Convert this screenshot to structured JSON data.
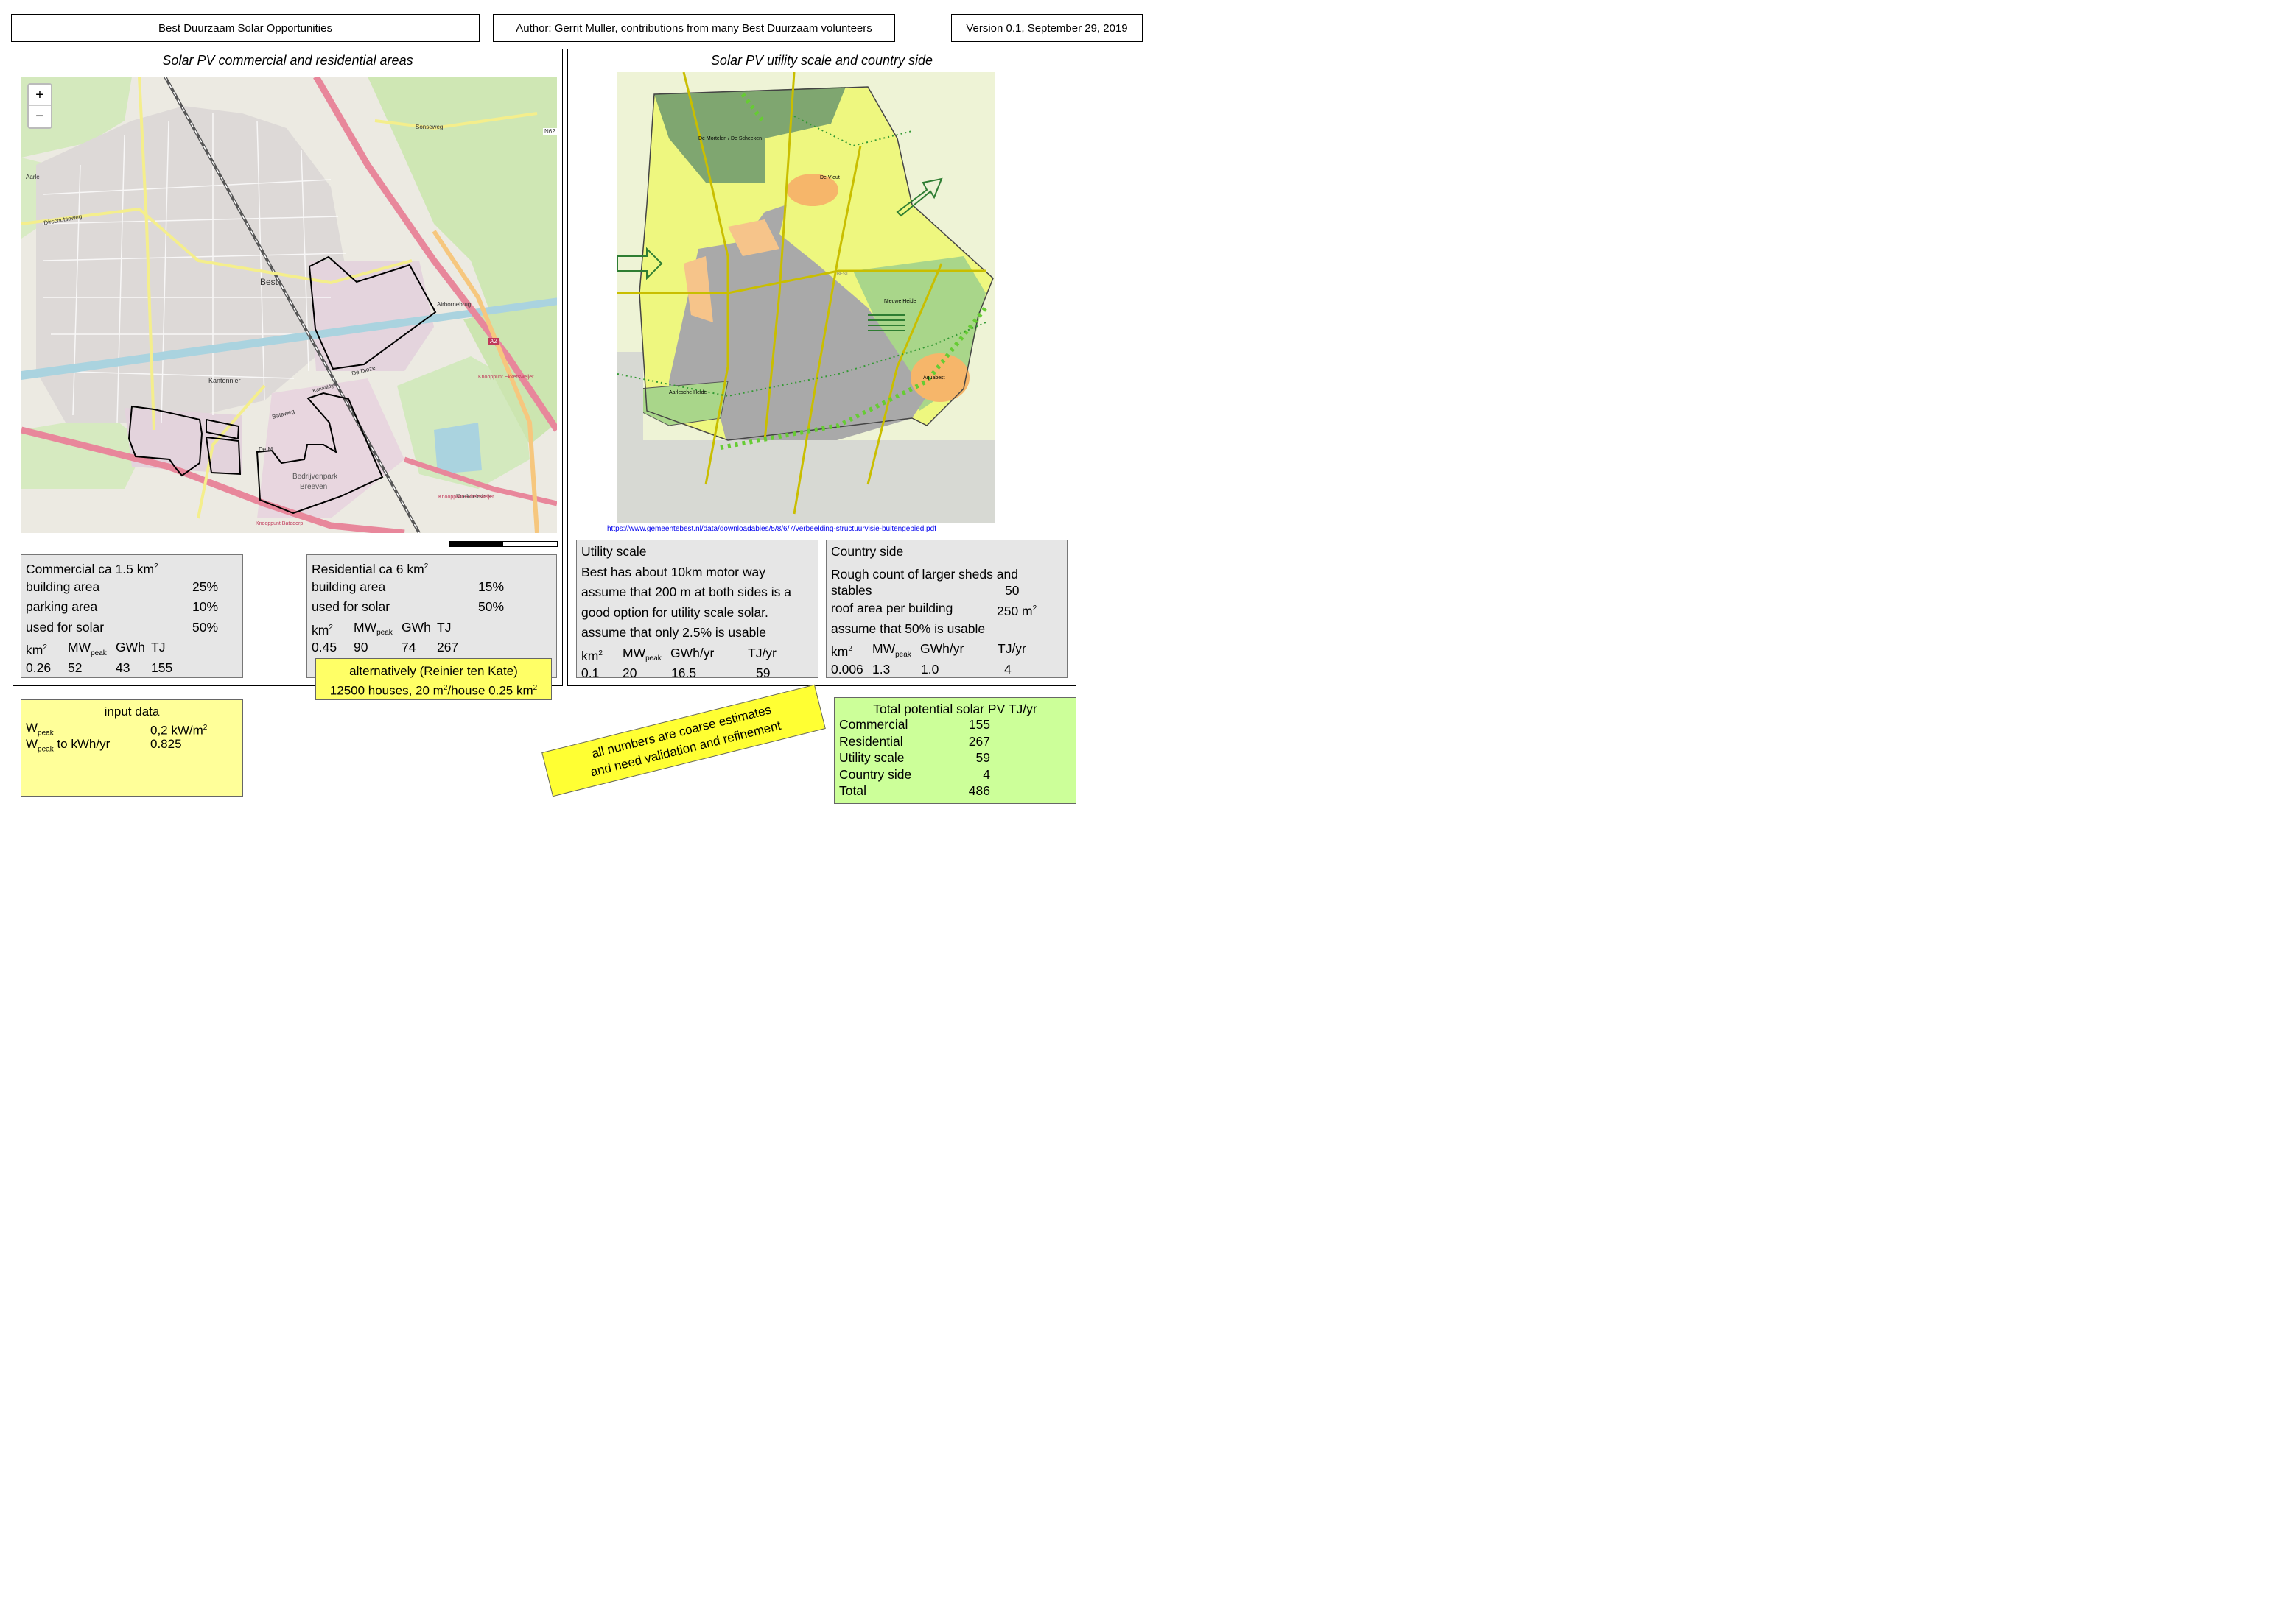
{
  "header": {
    "title": "Best Duurzaam Solar Opportunities",
    "author": "Author: Gerrit Muller, contributions from many Best Duurzaam volunteers",
    "version": "Version 0.1, September 29, 2019"
  },
  "left_panel": {
    "title": "Solar PV commercial and residential areas",
    "map": {
      "zoom_in": "+",
      "zoom_out": "−",
      "labels": {
        "best": "Best",
        "kantonnier": "Kantonnier",
        "aarle": "Aarle",
        "dirschotseweg": "Dirschotseweg",
        "airborne": "Airbornebrug",
        "de_dieze": "De Dieze",
        "kanaaldijk": "Kanaaldijk",
        "bataweg": "Bataweg",
        "bedrijvenpark": "Bedrijvenpark",
        "breeven": "Breeven",
        "koekoeksbos": "Koekoeksbos",
        "ekkersweijer1": "Knooppunt Ekkersweijer",
        "ekkersweijer2": "Knooppunt Ekkersweijer",
        "batadorp": "Knooppunt Batadorp",
        "sonseweg": "Sonseweg",
        "a2": "A2",
        "n62": "N62",
        "de_m": "De M"
      }
    },
    "commercial": {
      "title": "Commercial ca 1.5 km",
      "title_sup": "2",
      "rows": [
        {
          "label": "building area",
          "value": "25%"
        },
        {
          "label": "parking area",
          "value": "10%"
        },
        {
          "label": "used for solar",
          "value": "50%"
        }
      ],
      "header": {
        "km": "km",
        "km_sup": "2",
        "mw": "MW",
        "mw_sub": "peak",
        "gwh": "GWh",
        "tj": "TJ"
      },
      "values": {
        "km": "0.26",
        "mw": "52",
        "gwh": "43",
        "tj": "155"
      }
    },
    "residential": {
      "title": "Residential ca 6 km",
      "title_sup": "2",
      "rows": [
        {
          "label": "building area",
          "value": "15%"
        },
        {
          "label": "used for solar",
          "value": "50%"
        }
      ],
      "header": {
        "km": "km",
        "km_sup": "2",
        "mw": "MW",
        "mw_sub": "peak",
        "gwh": "GWh",
        "tj": "TJ"
      },
      "values": {
        "km": "0.45",
        "mw": "90",
        "gwh": "74",
        "tj": "267"
      }
    },
    "alternatively": {
      "line1": "alternatively (Reinier ten Kate)",
      "line2a": "12500 houses, 20 m",
      "sup1": "2",
      "line2b": "/house 0.25 km",
      "sup2": "2"
    }
  },
  "right_panel": {
    "title": "Solar PV utility scale and country side",
    "map": {
      "labels": {
        "mortelen": "De Mortelen / De Scheeken",
        "vleut": "De Vleut",
        "nieuwe_heide": "Nieuwe Heide",
        "aarlesche_heide": "Aarlesche Heide",
        "aquabest": "Aquabest",
        "best": "BEST"
      }
    },
    "link": "https://www.gemeentebest.nl/data/downloadables/5/8/6/7/verbeelding-structuurvisie-buitengebied.pdf",
    "utility": {
      "title": "Utility scale",
      "lines": [
        "Best has about 10km motor way",
        "assume that 200 m at both sides is a",
        "good option for utility scale solar.",
        "assume that only 2.5% is usable"
      ],
      "header": {
        "km": "km",
        "km_sup": "2",
        "mw": "MW",
        "mw_sub": "peak",
        "gwh": "GWh/yr",
        "tj": "TJ/yr"
      },
      "values": {
        "km": "0.1",
        "mw": "20",
        "gwh": "16.5",
        "tj": "59"
      }
    },
    "country": {
      "title": "Country side",
      "line1": "Rough count of larger sheds and",
      "line2": "stables",
      "line2_value": "50",
      "line3": "roof area per building",
      "line3_value": "250 m",
      "line3_sup": "2",
      "line4": "assume that 50% is usable",
      "header": {
        "km": "km",
        "km_sup": "2",
        "mw": "MW",
        "mw_sub": "peak",
        "gwh": "GWh/yr",
        "tj": "TJ/yr"
      },
      "values": {
        "km": "0.006",
        "mw": "1.3",
        "gwh": "1.0",
        "tj": "4"
      }
    }
  },
  "input_data": {
    "title": "input data",
    "wpeak": "W",
    "wpeak_sub": "peak",
    "wpeak_value": "0,2 kW/m",
    "wpeak_value_sup": "2",
    "conv": "W",
    "conv_sub": "peak",
    "conv_rest": " to kWh/yr",
    "conv_value": "0.825"
  },
  "note": {
    "line1": "all numbers are coarse estimates",
    "line2": "and need validation and refinement"
  },
  "total": {
    "title": "Total potential solar PV TJ/yr",
    "rows": [
      {
        "label": "Commercial",
        "value": "155"
      },
      {
        "label": "Residential",
        "value": "267"
      },
      {
        "label": "Utility scale",
        "value": "59"
      },
      {
        "label": "Country side",
        "value": "4"
      },
      {
        "label": "Total",
        "value": "486"
      }
    ]
  },
  "colors": {
    "yellow_box": "#ffff99",
    "green_box": "#ccff99",
    "gray_box": "#e6e6e6",
    "note_yellow": "#ffff33",
    "link_blue": "#0000ee"
  }
}
